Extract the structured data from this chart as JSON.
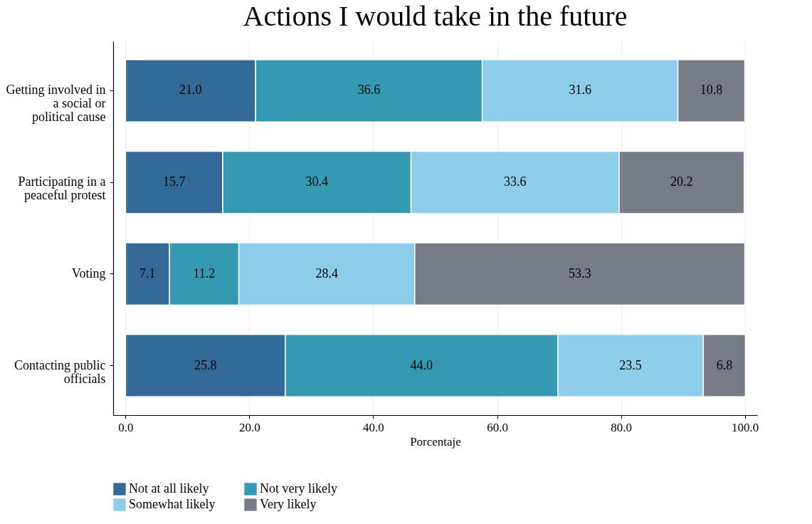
{
  "chart_data": {
    "type": "bar",
    "orientation": "horizontal",
    "stacked": true,
    "title": "Actions I would take in the future",
    "xlabel": "Porcentaje",
    "categories": [
      "Getting involved in a social or political cause",
      "Participating in a peaceful protest",
      "Voting",
      "Contacting public officials"
    ],
    "series": [
      {
        "name": "Not at all likely",
        "color": "#336a98",
        "values": [
          21.0,
          15.7,
          7.1,
          25.8
        ],
        "value_labels": [
          "21.0",
          "15.7",
          "7.1",
          "25.8"
        ]
      },
      {
        "name": "Not very likely",
        "color": "#3499b1",
        "values": [
          36.6,
          30.4,
          11.2,
          44.0
        ],
        "value_labels": [
          "36.6",
          "30.4",
          "11.2",
          "44.0"
        ]
      },
      {
        "name": "Somewhat likely",
        "color": "#8dcde9",
        "values": [
          31.6,
          33.6,
          28.4,
          23.5
        ],
        "value_labels": [
          "31.6",
          "33.6",
          "28.4",
          "23.5"
        ]
      },
      {
        "name": "Very likely",
        "color": "#787c86",
        "values": [
          10.8,
          20.2,
          53.3,
          6.8
        ],
        "value_labels": [
          "10.8",
          "20.2",
          "53.3",
          "6.8"
        ]
      }
    ],
    "xlim": [
      -2,
      102
    ],
    "xticks": [
      {
        "value": 0,
        "label": "0.0"
      },
      {
        "value": 20,
        "label": "20.0"
      },
      {
        "value": 40,
        "label": "40.0"
      },
      {
        "value": 60,
        "label": "60.0"
      },
      {
        "value": 80,
        "label": "80.0"
      },
      {
        "value": 100,
        "label": "100.0"
      }
    ],
    "grid": "x",
    "legend": "bottom"
  }
}
